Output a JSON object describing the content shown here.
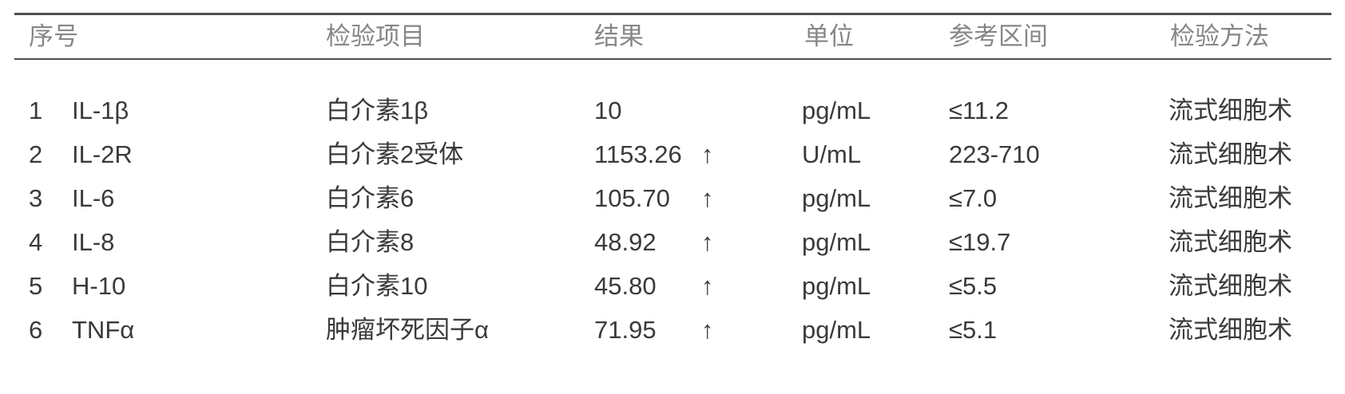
{
  "table": {
    "headers": {
      "seq": "序号",
      "item": "检验项目",
      "result": "结果",
      "unit": "单位",
      "range": "参考区间",
      "method": "检验方法"
    },
    "rows": [
      {
        "seq": "1",
        "code": "IL-1β",
        "name": "白介素1β",
        "result": "10",
        "flag": "",
        "unit": "pg/mL",
        "range": "≤11.2",
        "method": "流式细胞术"
      },
      {
        "seq": "2",
        "code": "IL-2R",
        "name": "白介素2受体",
        "result": "1153.26",
        "flag": "↑",
        "unit": "U/mL",
        "range": "223-710",
        "method": "流式细胞术"
      },
      {
        "seq": "3",
        "code": "IL-6",
        "name": "白介素6",
        "result": "105.70",
        "flag": "↑",
        "unit": "pg/mL",
        "range": "≤7.0",
        "method": "流式细胞术"
      },
      {
        "seq": "4",
        "code": "IL-8",
        "name": "白介素8",
        "result": "48.92",
        "flag": "↑",
        "unit": "pg/mL",
        "range": "≤19.7",
        "method": "流式细胞术"
      },
      {
        "seq": "5",
        "code": "H-10",
        "name": "白介素10",
        "result": "45.80",
        "flag": "↑",
        "unit": "pg/mL",
        "range": "≤5.5",
        "method": "流式细胞术"
      },
      {
        "seq": "6",
        "code": "TNFα",
        "name": "肿瘤坏死因子α",
        "result": "71.95",
        "flag": "↑",
        "unit": "pg/mL",
        "range": "≤5.1",
        "method": "流式细胞术"
      }
    ],
    "colors": {
      "header_text": "#868686",
      "body_text": "#3a3a3a",
      "rule": "#4f4f4f"
    }
  }
}
